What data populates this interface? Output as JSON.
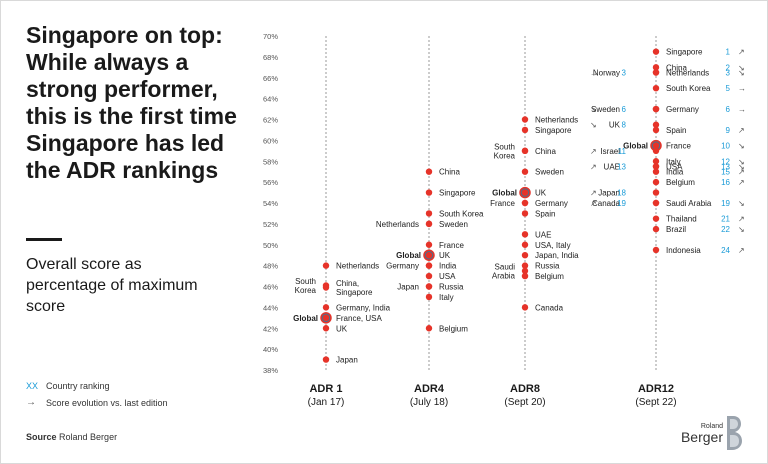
{
  "headline": "Singapore on top: While always a strong performer, this is the first time Singapore has led the ADR rankings",
  "subtitle": "Overall score as percentage of maximum score",
  "legend": {
    "rank_key": "XX",
    "rank_label": "Country ranking",
    "arrow_key": "→",
    "arrow_label": "Score evolution vs. last edition"
  },
  "source": {
    "label": "Source",
    "value": "Roland Berger"
  },
  "logo": {
    "small": "Roland",
    "big": "Berger"
  },
  "colors": {
    "dot": "#e63329",
    "global_fill": "#4f6e8a",
    "global_ring": "#e63329",
    "rank": "#1a9bd7",
    "arrow": "#555555",
    "axis_text": "#555555",
    "column_line": "#999999"
  },
  "chart_data": {
    "type": "scatter",
    "y_unit": "%",
    "ylim": [
      38,
      70
    ],
    "y_ticks": [
      "70%",
      "68%",
      "66%",
      "64%",
      "62%",
      "60%",
      "58%",
      "56%",
      "54%",
      "52%",
      "50%",
      "48%",
      "46%",
      "44%",
      "42%",
      "40%",
      "38%"
    ],
    "columns": [
      {
        "name": "ADR 1",
        "date": "(Jan 17)",
        "points": [
          {
            "label": "Netherlands",
            "value": 48,
            "side": "right"
          },
          {
            "label": "South Korea",
            "value": 46.1,
            "side": "left",
            "lines": [
              "South",
              "Korea"
            ]
          },
          {
            "label": "China, Singapore",
            "value": 45.9,
            "side": "right",
            "lines": [
              "China,",
              "Singapore"
            ]
          },
          {
            "label": "Germany, India",
            "value": 44,
            "side": "right"
          },
          {
            "label": "Global",
            "value": 43,
            "side": "left",
            "global": true
          },
          {
            "label": "France, USA",
            "value": 43,
            "side": "right"
          },
          {
            "label": "UK",
            "value": 42,
            "side": "right"
          },
          {
            "label": "Japan",
            "value": 39,
            "side": "right"
          }
        ]
      },
      {
        "name": "ADR4",
        "date": "(July 18)",
        "points": [
          {
            "label": "China",
            "value": 57,
            "side": "right"
          },
          {
            "label": "Singapore",
            "value": 55,
            "side": "right"
          },
          {
            "label": "South Korea",
            "value": 53,
            "side": "right"
          },
          {
            "label": "Netherlands",
            "value": 52,
            "side": "left"
          },
          {
            "label": "Sweden",
            "value": 52,
            "side": "right"
          },
          {
            "label": "France",
            "value": 50,
            "side": "right"
          },
          {
            "label": "Global",
            "value": 49,
            "side": "left",
            "global": true
          },
          {
            "label": "UK",
            "value": 49,
            "side": "right"
          },
          {
            "label": "Germany",
            "value": 48,
            "side": "left"
          },
          {
            "label": "India",
            "value": 48,
            "side": "right"
          },
          {
            "label": "USA",
            "value": 47,
            "side": "right"
          },
          {
            "label": "Japan",
            "value": 46,
            "side": "left"
          },
          {
            "label": "Russia",
            "value": 46,
            "side": "right"
          },
          {
            "label": "Italy",
            "value": 45,
            "side": "right"
          },
          {
            "label": "Belgium",
            "value": 42,
            "side": "right"
          }
        ]
      },
      {
        "name": "ADR8",
        "date": "(Sept 20)",
        "points": [
          {
            "label": "Netherlands",
            "value": 62,
            "side": "right"
          },
          {
            "label": "Singapore",
            "value": 61,
            "side": "right"
          },
          {
            "label": "South Korea",
            "value": 59,
            "side": "left",
            "lines": [
              "South",
              "Korea"
            ]
          },
          {
            "label": "China",
            "value": 59,
            "side": "right"
          },
          {
            "label": "Sweden",
            "value": 57,
            "side": "right"
          },
          {
            "label": "Global",
            "value": 55,
            "side": "left",
            "global": true
          },
          {
            "label": "UK",
            "value": 55,
            "side": "right"
          },
          {
            "label": "France",
            "value": 54,
            "side": "left"
          },
          {
            "label": "Germany",
            "value": 54,
            "side": "right"
          },
          {
            "label": "Spain",
            "value": 53,
            "side": "right"
          },
          {
            "label": "UAE",
            "value": 51,
            "side": "right"
          },
          {
            "label": "USA, Italy",
            "value": 50,
            "side": "right"
          },
          {
            "label": "Japan, India",
            "value": 49,
            "side": "right"
          },
          {
            "label": "Russia",
            "value": 48,
            "side": "right"
          },
          {
            "label": "Saudi Arabia",
            "value": 47.5,
            "side": "left",
            "lines": [
              "Saudi",
              "Arabia"
            ]
          },
          {
            "label": "Belgium",
            "value": 47,
            "side": "right"
          },
          {
            "label": "Canada",
            "value": 44,
            "side": "right"
          }
        ]
      },
      {
        "name": "ADR12",
        "date": "(Sept 22)",
        "points": [
          {
            "label": "Singapore",
            "value": 68.5,
            "side": "right",
            "rank": "1",
            "arrow": "↗"
          },
          {
            "label": "China",
            "value": 67,
            "side": "right",
            "rank": "2",
            "arrow": "↘"
          },
          {
            "label": "Netherlands",
            "value": 66.5,
            "side": "right",
            "rank": "3",
            "arrow": "↘"
          },
          {
            "label": "Norway",
            "value": 66.5,
            "side": "left",
            "rank": "3",
            "arrow": "→"
          },
          {
            "label": "South Korea",
            "value": 65,
            "side": "right",
            "rank": "5",
            "arrow": "→"
          },
          {
            "label": "Sweden",
            "value": 63,
            "side": "left",
            "rank": "6",
            "arrow": "↘"
          },
          {
            "label": "Germany",
            "value": 63,
            "side": "right",
            "rank": "6",
            "arrow": "→"
          },
          {
            "label": "UK",
            "value": 61.5,
            "side": "left",
            "rank": "8",
            "arrow": "↘"
          },
          {
            "label": "Spain",
            "value": 61,
            "side": "right",
            "rank": "9",
            "arrow": "↗"
          },
          {
            "label": "Global",
            "value": 59.5,
            "side": "left",
            "global": true
          },
          {
            "label": "France",
            "value": 59.5,
            "side": "right",
            "rank": "10",
            "arrow": "↘"
          },
          {
            "label": "Israel",
            "value": 59,
            "side": "left",
            "rank": "11",
            "arrow": "↗"
          },
          {
            "label": "Italy",
            "value": 58,
            "side": "right",
            "rank": "12",
            "arrow": "↘"
          },
          {
            "label": "UAE",
            "value": 57.5,
            "side": "left",
            "rank": "13",
            "arrow": "↗"
          },
          {
            "label": "USA",
            "value": 57.5,
            "side": "right",
            "rank": "13",
            "arrow": "↘"
          },
          {
            "label": "India",
            "value": 57,
            "side": "right",
            "rank": "15",
            "arrow": "↗"
          },
          {
            "label": "Belgium",
            "value": 56,
            "side": "right",
            "rank": "16",
            "arrow": "↗"
          },
          {
            "label": "Japan",
            "value": 55,
            "side": "left",
            "rank": "18",
            "arrow": "↗"
          },
          {
            "label": "Canada",
            "value": 54,
            "side": "left",
            "rank": "19",
            "arrow": "↗"
          },
          {
            "label": "Saudi Arabia",
            "value": 54,
            "side": "right",
            "rank": "19",
            "arrow": "↘"
          },
          {
            "label": "Thailand",
            "value": 52.5,
            "side": "right",
            "rank": "21",
            "arrow": "↗"
          },
          {
            "label": "Brazil",
            "value": 51.5,
            "side": "right",
            "rank": "22",
            "arrow": "↘"
          },
          {
            "label": "Indonesia",
            "value": 49.5,
            "side": "right",
            "rank": "24",
            "arrow": "↗"
          }
        ]
      }
    ]
  }
}
